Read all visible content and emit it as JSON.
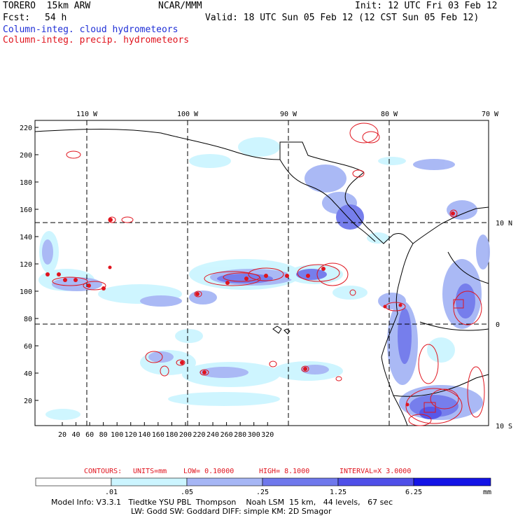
{
  "header": {
    "model": "TORERO  15km ARW",
    "center": "NCAR/MMM",
    "init": "Init: 12 UTC Fri 03 Feb 12",
    "fcst_label": "Fcst:",
    "fcst_value": "54 h",
    "valid": "Valid: 18 UTC Sun 05 Feb 12 (12 CST Sun 05 Feb 12)",
    "field1": "Column-integ. cloud hydrometeors",
    "field2": "Column-integ. precip. hydrometeors"
  },
  "map": {
    "lon_labels": [
      "110 W",
      "100 W",
      "90 W",
      "80 W",
      "70 W"
    ],
    "lat_labels": [
      "10 N",
      "0",
      "10 S"
    ],
    "y_ticks": [
      "220",
      "200",
      "180",
      "160",
      "140",
      "120",
      "100",
      "80",
      "60",
      "40",
      "20"
    ],
    "x_ticks": [
      "20",
      "40",
      "60",
      "80",
      "100",
      "120",
      "140",
      "160",
      "180",
      "200",
      "220",
      "240",
      "260",
      "280",
      "300",
      "320"
    ],
    "colors": {
      "grid": "#000000",
      "coast": "#000000",
      "contour": "#e0141e"
    }
  },
  "contour_info": {
    "label": "CONTOURS:",
    "units": "UNITS=mm",
    "low": "LOW= 0.10000",
    "high": "HIGH=  8.1000",
    "interval": "INTERVAL=X  3.0000"
  },
  "colorbar": {
    "labels": [
      ".01",
      ".05",
      ".25",
      "1.25",
      "6.25"
    ],
    "unit": "mm",
    "colors": [
      "#ffffff",
      "#ccf5ff",
      "#a6b6f5",
      "#6f78ec",
      "#4f4fe8",
      "#1414e6"
    ]
  },
  "footer": {
    "line1": "Model Info: V3.3.1   Tiedtke YSU PBL  Thompson    Noah LSM  15 km,   44 levels,   67 sec",
    "line2": "LW: Godd SW: Goddard DIFF: simple KM: 2D Smagor"
  }
}
